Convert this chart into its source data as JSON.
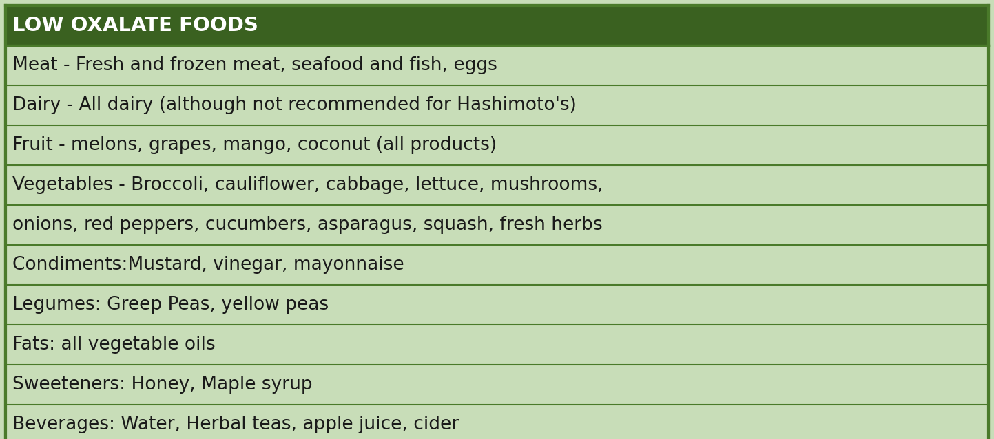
{
  "title": "LOW OXALATE FOODS",
  "title_bg_color": "#3a6120",
  "title_text_color": "#ffffff",
  "row_bg_color": "#c8ddb8",
  "border_color": "#4a7a2a",
  "text_color": "#1a1a1a",
  "rows": [
    "Meat - Fresh and frozen meat, seafood and fish, eggs",
    "Dairy - All dairy (although not recommended for Hashimoto's)",
    "Fruit - melons, grapes, mango, coconut (all products)",
    "Vegetables - Broccoli, cauliflower, cabbage, lettuce, mushrooms,",
    "onions, red peppers, cucumbers, asparagus, squash, fresh herbs",
    "Condiments:Mustard, vinegar, mayonnaise",
    "Legumes: Greep Peas, yellow peas",
    "Fats: all vegetable oils",
    "Sweeteners: Honey, Maple syrup",
    "Beverages: Water, Herbal teas, apple juice, cider"
  ],
  "title_fontsize": 21,
  "row_fontsize": 19,
  "figwidth": 14.43,
  "figheight": 6.38,
  "dpi": 100
}
